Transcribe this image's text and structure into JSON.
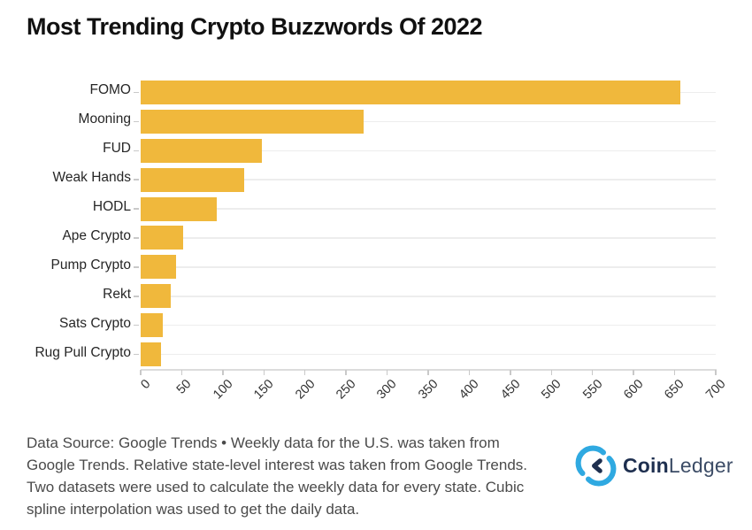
{
  "title": "Most Trending Crypto Buzzwords Of 2022",
  "chart_data": {
    "type": "bar",
    "orientation": "horizontal",
    "title": "Most Trending Crypto Buzzwords Of 2022",
    "categories": [
      "FOMO",
      "Mooning",
      "FUD",
      "Weak Hands",
      "HODL",
      "Ape Crypto",
      "Pump Crypto",
      "Rekt",
      "Sats Crypto",
      "Rug Pull Crypto"
    ],
    "values": [
      657,
      271,
      147,
      126,
      93,
      52,
      43,
      37,
      27,
      25
    ],
    "xlabel": "",
    "ylabel": "",
    "xlim": [
      0,
      700
    ],
    "xticks": [
      0,
      50,
      100,
      150,
      200,
      250,
      300,
      350,
      400,
      450,
      500,
      550,
      600,
      650,
      700
    ],
    "xtick_rotation_deg": 45,
    "grid": "horizontal-category-lines",
    "legend": "none",
    "bar_color": "#F0B83C",
    "gridline_color": "#EDEDED",
    "axis_color": "#DCDCDC"
  },
  "footer": {
    "text": "Data Source: Google Trends • Weekly data for the U.S. was taken from\nGoogle Trends. Relative state-level interest was taken from Google Trends.\nTwo datasets were used to calculate the weekly data for every state. Cubic\nspline interpolation was used to get the daily data."
  },
  "brand": {
    "name_bold": "Coin",
    "name_light": "Ledger",
    "icon": "coinledger-logo-icon",
    "icon_color": "#2FA9E1",
    "text_color": "#1E2F4F"
  }
}
